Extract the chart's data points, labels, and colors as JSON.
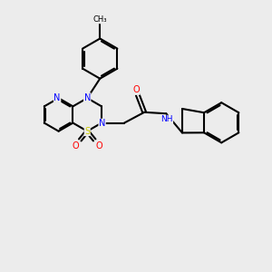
{
  "background_color": "#ececec",
  "bond_color": "#000000",
  "bond_width": 1.5,
  "atom_colors": {
    "N": "#0000ff",
    "O": "#ff0000",
    "S": "#cccc00",
    "C": "#000000",
    "H": "#000000"
  },
  "figsize": [
    3.0,
    3.0
  ],
  "dpi": 100
}
